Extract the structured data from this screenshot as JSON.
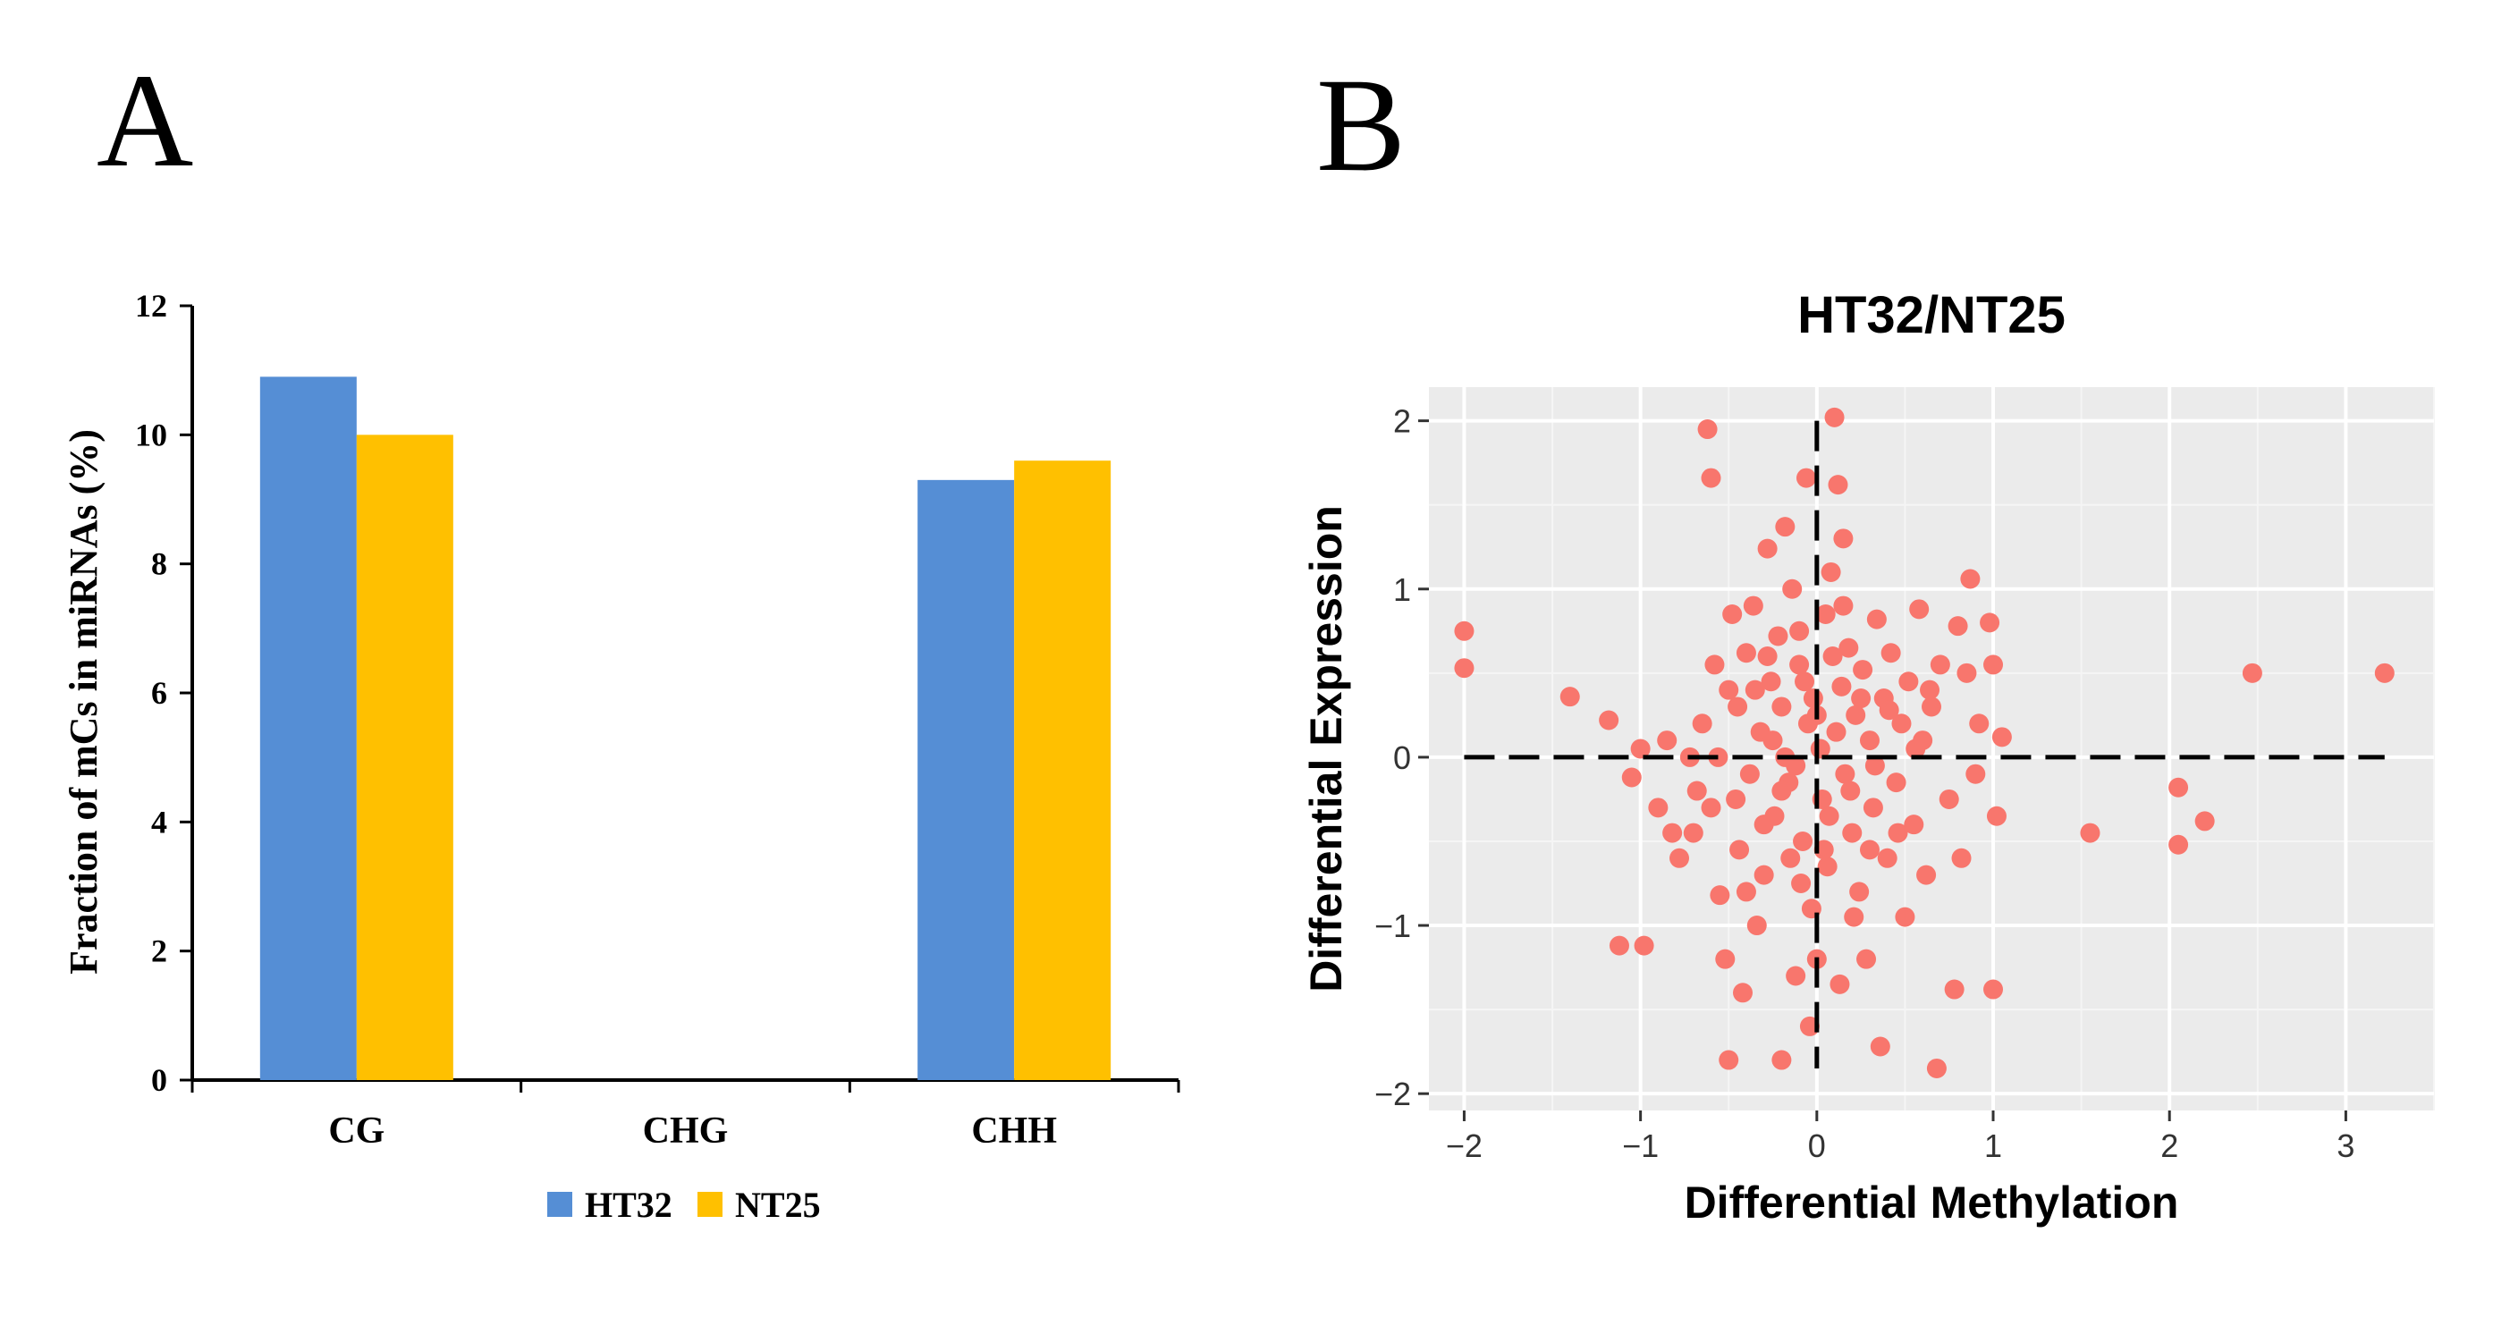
{
  "panel_a_label": "A",
  "panel_b_label": "B",
  "chart_data": [
    {
      "type": "bar",
      "title": "",
      "xlabel": "",
      "ylabel": "Fraction of mCs in miRNAs (%)",
      "categories": [
        "CG",
        "CHG",
        "CHH"
      ],
      "series": [
        {
          "name": "HT32",
          "color": "#558ed5",
          "values": [
            10.9,
            0,
            9.3
          ]
        },
        {
          "name": "NT25",
          "color": "#ffc000",
          "values": [
            10.0,
            0,
            9.6
          ]
        }
      ],
      "ylim": [
        0,
        12
      ],
      "yticks": [
        "0",
        "2",
        "4",
        "6",
        "8",
        "10",
        "12"
      ],
      "legend": "bottom-center",
      "grid": false
    },
    {
      "type": "scatter",
      "title": "HT32/NT25",
      "xlabel": "Differential Methylation",
      "ylabel": "Differential Expression",
      "xlim": [
        -2.2,
        3.5
      ],
      "ylim": [
        -2.1,
        2.2
      ],
      "xticks": [
        "-2",
        "-1",
        "0",
        "1",
        "2",
        "3"
      ],
      "yticks": [
        "-2",
        "-1",
        "0",
        "1",
        "2"
      ],
      "point_color": "#f8766d",
      "panel_background": "#ebebeb",
      "grid": true,
      "reference_lines": {
        "x": 0,
        "y": 0,
        "style": "dashed"
      },
      "points": [
        [
          -2.0,
          0.75
        ],
        [
          -2.0,
          0.53
        ],
        [
          -1.4,
          0.36
        ],
        [
          -1.18,
          0.22
        ],
        [
          -1.12,
          -1.12
        ],
        [
          -0.98,
          -1.12
        ],
        [
          -1.05,
          -0.12
        ],
        [
          -1.0,
          0.05
        ],
        [
          -0.9,
          -0.3
        ],
        [
          -0.85,
          0.1
        ],
        [
          -0.82,
          -0.45
        ],
        [
          -0.78,
          -0.6
        ],
        [
          -0.72,
          0.0
        ],
        [
          -0.68,
          -0.2
        ],
        [
          -0.62,
          1.95
        ],
        [
          -0.6,
          1.66
        ],
        [
          -0.58,
          0.55
        ],
        [
          -0.55,
          -0.82
        ],
        [
          -0.52,
          -1.2
        ],
        [
          -0.5,
          -1.8
        ],
        [
          -0.48,
          0.85
        ],
        [
          -0.45,
          0.3
        ],
        [
          -0.44,
          -0.55
        ],
        [
          -0.42,
          -1.4
        ],
        [
          -0.4,
          0.62
        ],
        [
          -0.38,
          -0.1
        ],
        [
          -0.36,
          0.9
        ],
        [
          -0.34,
          -1.0
        ],
        [
          -0.32,
          0.15
        ],
        [
          -0.3,
          -0.7
        ],
        [
          -0.28,
          1.24
        ],
        [
          -0.26,
          0.45
        ],
        [
          -0.24,
          -0.35
        ],
        [
          -0.22,
          0.72
        ],
        [
          -0.2,
          -1.8
        ],
        [
          -0.18,
          1.37
        ],
        [
          -0.16,
          -0.15
        ],
        [
          -0.14,
          1.0
        ],
        [
          -0.12,
          -1.3
        ],
        [
          -0.1,
          0.55
        ],
        [
          -0.08,
          -0.5
        ],
        [
          -0.06,
          1.66
        ],
        [
          -0.05,
          0.2
        ],
        [
          -0.04,
          -1.6
        ],
        [
          -0.03,
          -0.9
        ],
        [
          -0.02,
          0.35
        ],
        [
          0.0,
          -1.2
        ],
        [
          0.02,
          0.05
        ],
        [
          0.03,
          -0.25
        ],
        [
          0.05,
          0.85
        ],
        [
          0.06,
          -0.65
        ],
        [
          0.08,
          1.1
        ],
        [
          0.1,
          2.02
        ],
        [
          0.12,
          1.62
        ],
        [
          0.13,
          -1.35
        ],
        [
          0.14,
          0.42
        ],
        [
          0.15,
          1.3
        ],
        [
          0.16,
          -0.1
        ],
        [
          0.18,
          0.65
        ],
        [
          0.2,
          -0.45
        ],
        [
          0.22,
          0.25
        ],
        [
          0.24,
          -0.8
        ],
        [
          0.26,
          0.52
        ],
        [
          0.28,
          -1.2
        ],
        [
          0.3,
          0.1
        ],
        [
          0.32,
          -0.3
        ],
        [
          0.34,
          0.82
        ],
        [
          0.36,
          -1.72
        ],
        [
          0.38,
          0.35
        ],
        [
          0.4,
          -0.6
        ],
        [
          0.42,
          0.62
        ],
        [
          0.45,
          -0.15
        ],
        [
          0.48,
          0.2
        ],
        [
          0.5,
          -0.95
        ],
        [
          0.52,
          0.45
        ],
        [
          0.55,
          -0.4
        ],
        [
          0.58,
          0.88
        ],
        [
          0.6,
          0.1
        ],
        [
          0.62,
          -0.7
        ],
        [
          0.65,
          0.3
        ],
        [
          0.68,
          -1.85
        ],
        [
          0.7,
          0.55
        ],
        [
          0.75,
          -0.25
        ],
        [
          0.78,
          -1.38
        ],
        [
          0.8,
          0.78
        ],
        [
          0.82,
          -0.6
        ],
        [
          0.85,
          0.5
        ],
        [
          0.87,
          1.06
        ],
        [
          0.9,
          -0.1
        ],
        [
          0.92,
          0.2
        ],
        [
          0.98,
          0.8
        ],
        [
          1.0,
          -1.38
        ],
        [
          1.0,
          0.55
        ],
        [
          1.02,
          -0.35
        ],
        [
          1.05,
          0.12
        ],
        [
          1.55,
          -0.45
        ],
        [
          2.05,
          -0.18
        ],
        [
          2.05,
          -0.52
        ],
        [
          2.2,
          -0.38
        ],
        [
          2.47,
          0.5
        ],
        [
          3.22,
          0.5
        ],
        [
          -0.65,
          0.2
        ],
        [
          -0.7,
          -0.45
        ],
        [
          -0.56,
          0.0
        ],
        [
          -0.46,
          -0.25
        ],
        [
          -0.35,
          0.4
        ],
        [
          -0.25,
          0.1
        ],
        [
          -0.15,
          -0.6
        ],
        [
          -0.1,
          0.75
        ],
        [
          -0.2,
          0.3
        ],
        [
          -0.3,
          -0.4
        ],
        [
          -0.12,
          -0.05
        ],
        [
          -0.07,
          0.45
        ],
        [
          0.07,
          -0.35
        ],
        [
          0.11,
          0.15
        ],
        [
          0.19,
          -0.2
        ],
        [
          0.25,
          0.35
        ],
        [
          0.33,
          -0.05
        ],
        [
          0.41,
          0.28
        ],
        [
          0.21,
          -0.95
        ],
        [
          0.09,
          0.6
        ],
        [
          -0.09,
          -0.75
        ],
        [
          -0.18,
          0.0
        ],
        [
          0.15,
          0.9
        ],
        [
          -0.28,
          0.6
        ],
        [
          0.3,
          -0.55
        ],
        [
          -0.4,
          -0.8
        ],
        [
          -0.5,
          0.4
        ],
        [
          0.46,
          -0.45
        ],
        [
          0.56,
          0.05
        ],
        [
          0.64,
          0.4
        ],
        [
          -0.6,
          -0.3
        ],
        [
          -0.2,
          -0.2
        ],
        [
          0.0,
          0.25
        ],
        [
          0.04,
          -0.55
        ]
      ]
    }
  ]
}
